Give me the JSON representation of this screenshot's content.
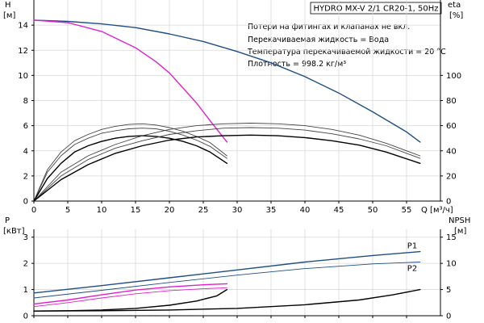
{
  "title": "HYDRO MX-V 2/1 CR20-1, 50Hz",
  "notes": [
    "Потери на фитингах и клапанах не вкл.",
    "Перекачиваемая жидкость = Вода",
    "Температура перекачиваемой жидкости = 20 °C",
    "Плотность = 998.2 кг/м³"
  ],
  "colors": {
    "blue": "#1f4e86",
    "magenta": "#e020d0",
    "black": "#000000",
    "gray": "#444444"
  },
  "chart_data": [
    {
      "type": "line",
      "name": "head-efficiency",
      "xlabel": "Q [м³/ч]",
      "ylabel_left": {
        "name": "H",
        "unit": "[м]"
      },
      "ylabel_right": {
        "name": "eta",
        "unit": "[%]"
      },
      "xlim": [
        0,
        60
      ],
      "ylim_left": [
        0,
        16
      ],
      "ylim_right": [
        0,
        160
      ],
      "x_ticks": [
        0,
        5,
        10,
        15,
        20,
        25,
        30,
        35,
        40,
        45,
        50,
        55
      ],
      "y_ticks_left": [
        0,
        2,
        4,
        6,
        8,
        10,
        12,
        14
      ],
      "y_ticks_right": [
        0,
        20,
        40,
        60,
        80,
        100
      ],
      "grid": true,
      "series": [
        {
          "color": "blue",
          "axis": "left",
          "width": 1.4,
          "points": [
            [
              0,
              14.4
            ],
            [
              5,
              14.3
            ],
            [
              10,
              14.1
            ],
            [
              15,
              13.8
            ],
            [
              20,
              13.3
            ],
            [
              25,
              12.7
            ],
            [
              30,
              11.9
            ],
            [
              35,
              11.0
            ],
            [
              40,
              9.9
            ],
            [
              45,
              8.6
            ],
            [
              50,
              7.1
            ],
            [
              55,
              5.5
            ],
            [
              57,
              4.7
            ]
          ]
        },
        {
          "color": "magenta",
          "axis": "left",
          "width": 1.4,
          "points": [
            [
              0,
              14.4
            ],
            [
              5,
              14.2
            ],
            [
              10,
              13.5
            ],
            [
              15,
              12.2
            ],
            [
              18,
              11.1
            ],
            [
              20,
              10.2
            ],
            [
              22,
              9.0
            ],
            [
              24,
              7.8
            ],
            [
              26,
              6.4
            ],
            [
              28.5,
              4.7
            ]
          ]
        },
        {
          "color": "gray",
          "axis": "left",
          "width": 0.9,
          "points": [
            [
              0,
              0
            ],
            [
              2,
              2.5
            ],
            [
              4,
              3.9
            ],
            [
              6,
              4.8
            ],
            [
              8,
              5.3
            ],
            [
              10,
              5.7
            ],
            [
              12,
              5.95
            ],
            [
              14,
              6.1
            ],
            [
              16,
              6.15
            ],
            [
              18,
              6.05
            ],
            [
              20,
              5.85
            ],
            [
              22,
              5.55
            ],
            [
              24,
              5.15
            ],
            [
              26,
              4.65
            ],
            [
              28.5,
              3.6
            ]
          ]
        },
        {
          "color": "gray",
          "axis": "left",
          "width": 0.9,
          "points": [
            [
              0,
              0
            ],
            [
              2,
              2.3
            ],
            [
              4,
              3.6
            ],
            [
              6,
              4.5
            ],
            [
              8,
              5.0
            ],
            [
              10,
              5.4
            ],
            [
              12,
              5.6
            ],
            [
              14,
              5.75
            ],
            [
              16,
              5.8
            ],
            [
              18,
              5.75
            ],
            [
              20,
              5.55
            ],
            [
              22,
              5.25
            ],
            [
              24,
              4.85
            ],
            [
              26,
              4.35
            ],
            [
              28.5,
              3.4
            ]
          ]
        },
        {
          "color": "black",
          "axis": "left",
          "width": 1.4,
          "points": [
            [
              0,
              0
            ],
            [
              2,
              1.8
            ],
            [
              4,
              3.0
            ],
            [
              6,
              3.9
            ],
            [
              8,
              4.4
            ],
            [
              10,
              4.75
            ],
            [
              12,
              5.0
            ],
            [
              14,
              5.15
            ],
            [
              16,
              5.2
            ],
            [
              18,
              5.15
            ],
            [
              20,
              5.0
            ],
            [
              22,
              4.75
            ],
            [
              24,
              4.4
            ],
            [
              26,
              3.9
            ],
            [
              28.5,
              3.0
            ]
          ]
        },
        {
          "color": "gray",
          "axis": "left",
          "width": 0.9,
          "points": [
            [
              0,
              0
            ],
            [
              4,
              2.3
            ],
            [
              8,
              3.6
            ],
            [
              12,
              4.5
            ],
            [
              16,
              5.2
            ],
            [
              20,
              5.7
            ],
            [
              24,
              6.0
            ],
            [
              28,
              6.15
            ],
            [
              32,
              6.2
            ],
            [
              36,
              6.15
            ],
            [
              40,
              6.0
            ],
            [
              44,
              5.7
            ],
            [
              48,
              5.25
            ],
            [
              52,
              4.6
            ],
            [
              57,
              3.6
            ]
          ]
        },
        {
          "color": "gray",
          "axis": "left",
          "width": 0.9,
          "points": [
            [
              0,
              0
            ],
            [
              4,
              2.0
            ],
            [
              8,
              3.3
            ],
            [
              12,
              4.2
            ],
            [
              16,
              4.8
            ],
            [
              20,
              5.3
            ],
            [
              24,
              5.6
            ],
            [
              28,
              5.8
            ],
            [
              32,
              5.85
            ],
            [
              36,
              5.8
            ],
            [
              40,
              5.65
            ],
            [
              44,
              5.35
            ],
            [
              48,
              4.95
            ],
            [
              52,
              4.4
            ],
            [
              57,
              3.4
            ]
          ]
        },
        {
          "color": "black",
          "axis": "left",
          "width": 1.4,
          "points": [
            [
              0,
              0
            ],
            [
              4,
              1.7
            ],
            [
              8,
              2.9
            ],
            [
              12,
              3.8
            ],
            [
              16,
              4.4
            ],
            [
              20,
              4.85
            ],
            [
              24,
              5.1
            ],
            [
              28,
              5.2
            ],
            [
              32,
              5.25
            ],
            [
              36,
              5.2
            ],
            [
              40,
              5.05
            ],
            [
              44,
              4.8
            ],
            [
              48,
              4.45
            ],
            [
              52,
              3.9
            ],
            [
              57,
              3.0
            ]
          ]
        }
      ]
    },
    {
      "type": "line",
      "name": "power-npsh",
      "ylabel_left": {
        "name": "P",
        "unit": "[кВт]"
      },
      "ylabel_right": {
        "name": "NPSH",
        "unit": "[м]"
      },
      "xlim": [
        0,
        60
      ],
      "ylim_left": [
        0,
        3.3
      ],
      "ylim_right": [
        0,
        16.5
      ],
      "x_ticks": [
        0,
        5,
        10,
        15,
        20,
        25,
        30,
        35,
        40,
        45,
        50,
        55
      ],
      "y_ticks_left": [
        0,
        1,
        2,
        3
      ],
      "y_ticks_right": [
        0,
        5,
        10,
        15
      ],
      "grid": true,
      "series": [
        {
          "name": "P1",
          "color": "blue",
          "axis": "left",
          "width": 1.4,
          "points": [
            [
              0,
              0.87
            ],
            [
              10,
              1.15
            ],
            [
              20,
              1.45
            ],
            [
              30,
              1.75
            ],
            [
              40,
              2.05
            ],
            [
              50,
              2.3
            ],
            [
              57,
              2.45
            ]
          ]
        },
        {
          "name": "P2",
          "color": "blue",
          "axis": "left",
          "width": 0.9,
          "points": [
            [
              0,
              0.68
            ],
            [
              10,
              0.97
            ],
            [
              20,
              1.27
            ],
            [
              30,
              1.55
            ],
            [
              40,
              1.8
            ],
            [
              50,
              1.98
            ],
            [
              57,
              2.05
            ]
          ]
        },
        {
          "color": "magenta",
          "axis": "left",
          "width": 1.4,
          "points": [
            [
              0,
              0.45
            ],
            [
              5,
              0.6
            ],
            [
              10,
              0.8
            ],
            [
              15,
              0.98
            ],
            [
              20,
              1.1
            ],
            [
              25,
              1.18
            ],
            [
              28.5,
              1.22
            ]
          ]
        },
        {
          "color": "magenta",
          "axis": "left",
          "width": 0.9,
          "points": [
            [
              0,
              0.35
            ],
            [
              5,
              0.5
            ],
            [
              10,
              0.68
            ],
            [
              15,
              0.84
            ],
            [
              20,
              0.96
            ],
            [
              25,
              1.03
            ],
            [
              28.5,
              1.07
            ]
          ]
        },
        {
          "color": "black",
          "axis": "right",
          "width": 1.4,
          "points": [
            [
              0,
              0.9
            ],
            [
              5,
              0.95
            ],
            [
              10,
              1.1
            ],
            [
              15,
              1.4
            ],
            [
              20,
              2.0
            ],
            [
              24,
              2.8
            ],
            [
              27,
              3.8
            ],
            [
              28.5,
              5.0
            ]
          ]
        },
        {
          "color": "black",
          "axis": "right",
          "width": 1.4,
          "points": [
            [
              0,
              0.9
            ],
            [
              10,
              0.95
            ],
            [
              20,
              1.1
            ],
            [
              30,
              1.4
            ],
            [
              40,
              2.1
            ],
            [
              48,
              3.0
            ],
            [
              53,
              4.0
            ],
            [
              57,
              5.0
            ]
          ]
        }
      ]
    }
  ]
}
